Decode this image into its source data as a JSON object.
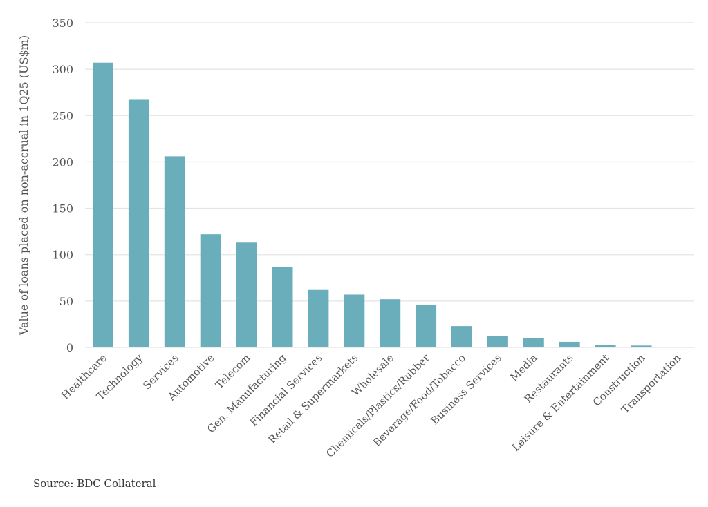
{
  "chart_data": {
    "type": "bar",
    "title": "",
    "xlabel": "",
    "ylabel": "Value of loans placed on non-accrual in 1Q25 (US$m)",
    "ylim": [
      0,
      350
    ],
    "yticks": [
      0,
      50,
      100,
      150,
      200,
      250,
      300,
      350
    ],
    "grid": true,
    "legend": "none",
    "bar_color": "#6aaebb",
    "categories": [
      "Healthcare",
      "Technology",
      "Services",
      "Automotive",
      "Telecom",
      "Gen. Manufacturing",
      "Financial Services",
      "Retail & Supermarkets",
      "Wholesale",
      "Chemicals/Plastics/Rubber",
      "Beverage/Food/Tobacco",
      "Business Services",
      "Media",
      "Restaurants",
      "Leisure & Entertainment",
      "Construction",
      "Transportation"
    ],
    "values": [
      307,
      267,
      206,
      122,
      113,
      87,
      62,
      57,
      52,
      46,
      23,
      12,
      10,
      6,
      2.5,
      2,
      0
    ]
  },
  "source": "Source: BDC Collateral"
}
